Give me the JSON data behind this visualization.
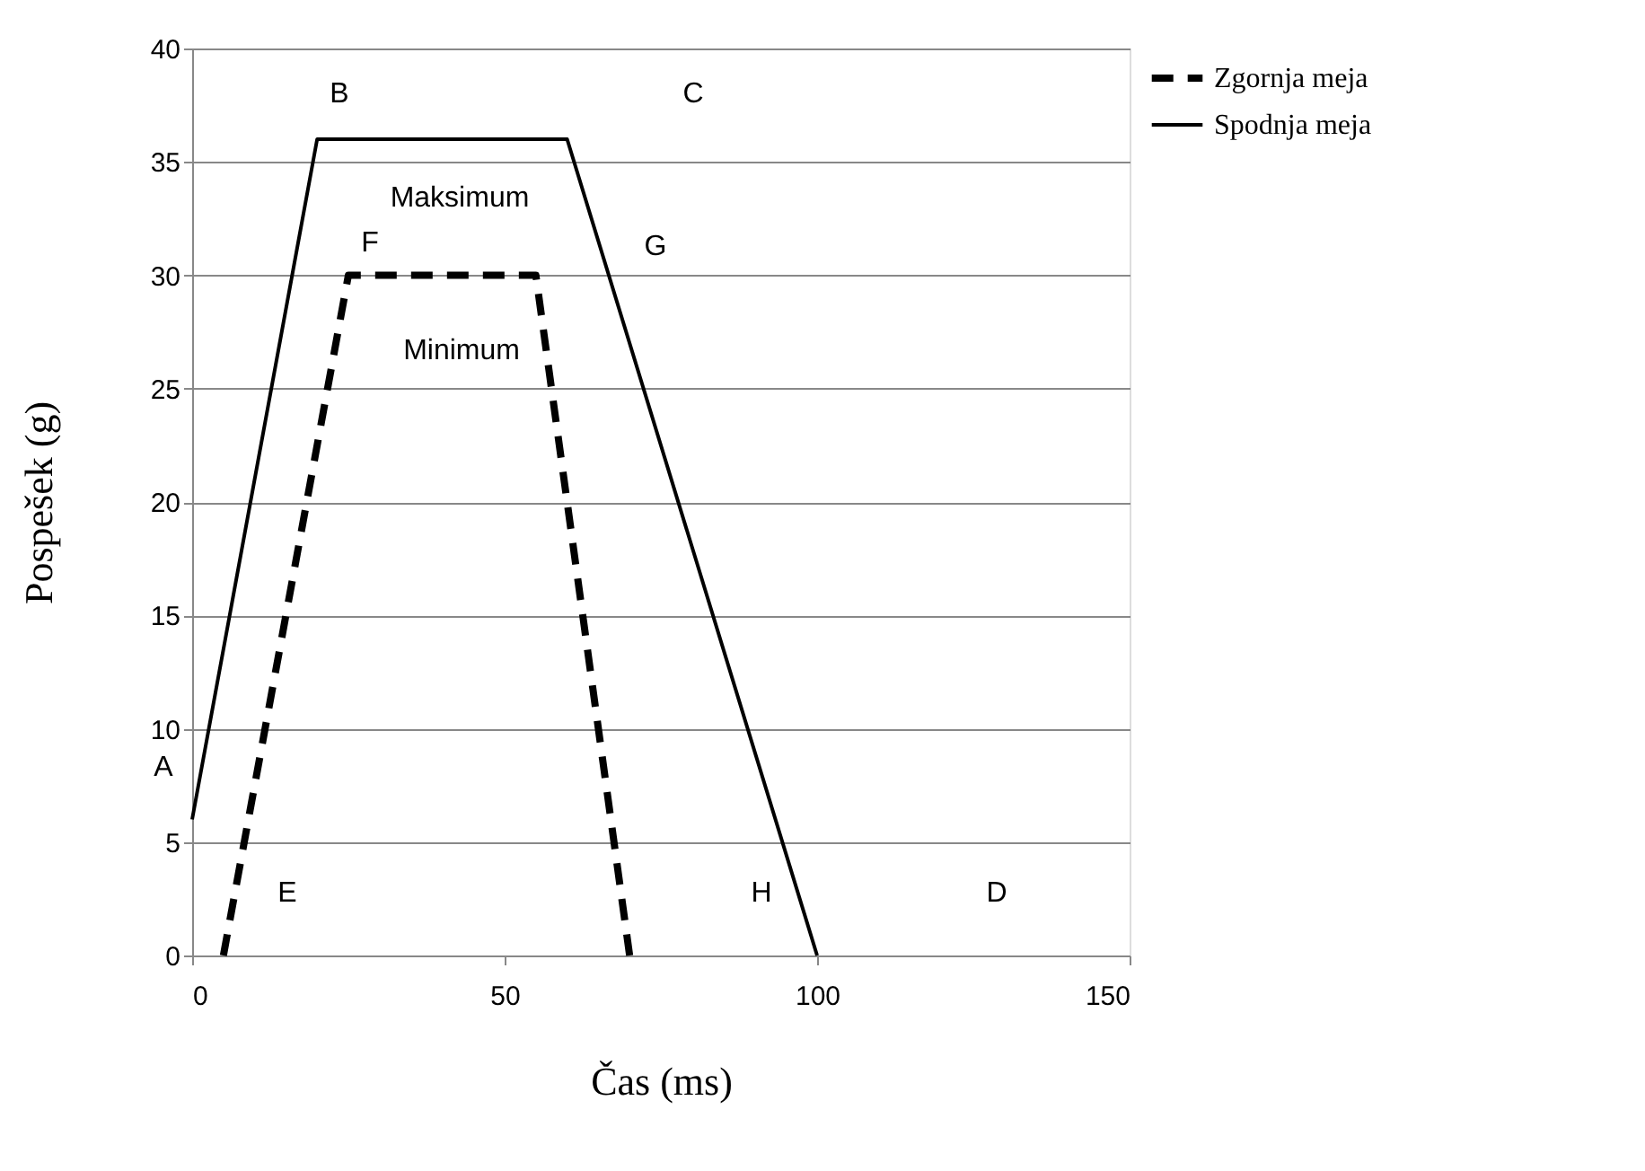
{
  "chart_data": {
    "type": "line",
    "xlabel": "Čas (ms)",
    "ylabel": "Pospešek (g)",
    "xlim": [
      0,
      150
    ],
    "xticks": [
      0,
      50,
      100,
      150
    ],
    "ylim": [
      0,
      40
    ],
    "yticks": [
      0,
      5,
      10,
      15,
      20,
      25,
      30,
      35,
      40
    ],
    "grid": "y",
    "legend": "right",
    "marker": "none",
    "series": [
      {
        "name": "Zgornja meja",
        "color": "#000000",
        "line_style": "dashed",
        "x": [
          5,
          25,
          55,
          70
        ],
        "values": [
          0,
          30,
          30,
          0
        ]
      },
      {
        "name": "Spodnja meja",
        "color": "#000000",
        "line_style": "solid",
        "x": [
          0,
          20,
          60,
          100
        ],
        "values": [
          6,
          36,
          36,
          0
        ]
      }
    ],
    "annotations": [
      "A",
      "B",
      "C",
      "Maksimum",
      "F",
      "G",
      "Minimum",
      "E",
      "H",
      "D"
    ]
  }
}
